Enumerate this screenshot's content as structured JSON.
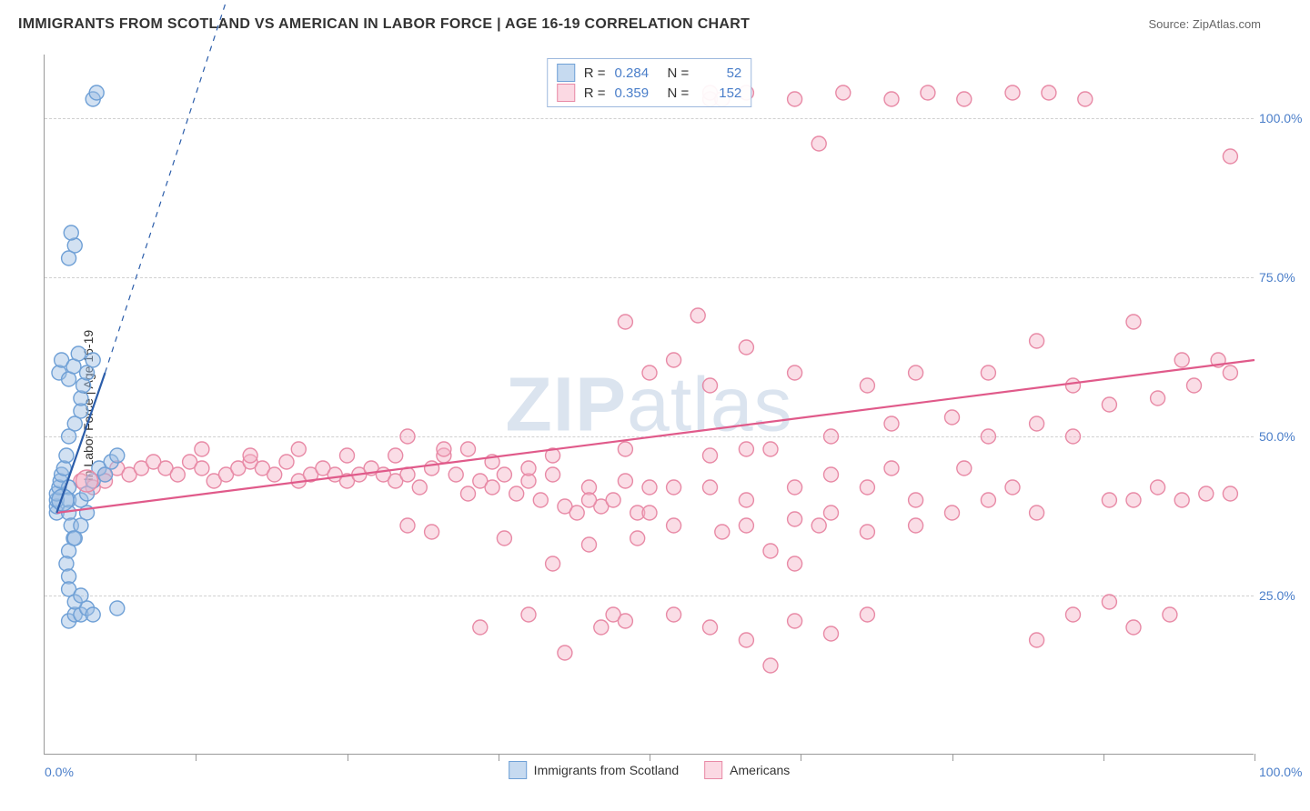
{
  "title": "IMMIGRANTS FROM SCOTLAND VS AMERICAN IN LABOR FORCE | AGE 16-19 CORRELATION CHART",
  "source": "Source: ZipAtlas.com",
  "watermark": "ZIPatlas",
  "y_axis_label": "In Labor Force | Age 16-19",
  "chart": {
    "type": "scatter",
    "xlim": [
      0,
      100
    ],
    "ylim": [
      0,
      110
    ],
    "x_ticks_minor": [
      0,
      12.5,
      25,
      37.5,
      50,
      62.5,
      75,
      87.5,
      100
    ],
    "y_grid": [
      25,
      50,
      75,
      100
    ],
    "y_tick_labels": [
      "25.0%",
      "50.0%",
      "75.0%",
      "100.0%"
    ],
    "x_tick_label_0": "0.0%",
    "x_tick_label_100": "100.0%",
    "background_color": "#ffffff",
    "grid_color": "#d0d0d0",
    "axis_color": "#999999",
    "tick_label_color": "#4a7ec9",
    "marker_radius": 8,
    "marker_radius_large": 12,
    "marker_stroke_width": 1.4,
    "series": [
      {
        "name": "Immigrants from Scotland",
        "color_fill": "rgba(156,189,227,0.45)",
        "color_stroke": "#6fa0d6",
        "swatch_fill": "#c6daf0",
        "swatch_border": "#6fa0d6",
        "R": "0.284",
        "N": "52",
        "trend": {
          "x1": 1,
          "y1": 38,
          "x2": 5,
          "y2": 60,
          "ext_x2": 17,
          "ext_y2": 130,
          "color": "#2b5daa",
          "width": 2.2
        },
        "points": [
          [
            1,
            38
          ],
          [
            1,
            39
          ],
          [
            1,
            40
          ],
          [
            1,
            41
          ],
          [
            1.2,
            42
          ],
          [
            1.3,
            43
          ],
          [
            1.4,
            44
          ],
          [
            1.6,
            45
          ],
          [
            1.8,
            47
          ],
          [
            2,
            42
          ],
          [
            2,
            40
          ],
          [
            2,
            38
          ],
          [
            2.2,
            36
          ],
          [
            2.4,
            34
          ],
          [
            2,
            32
          ],
          [
            1.8,
            30
          ],
          [
            2,
            28
          ],
          [
            2,
            50
          ],
          [
            2.5,
            52
          ],
          [
            3,
            54
          ],
          [
            3,
            56
          ],
          [
            3.2,
            58
          ],
          [
            3.5,
            60
          ],
          [
            4,
            62
          ],
          [
            1.2,
            60
          ],
          [
            1.4,
            62
          ],
          [
            2,
            59
          ],
          [
            2.4,
            61
          ],
          [
            2.8,
            63
          ],
          [
            2,
            78
          ],
          [
            2.5,
            80
          ],
          [
            2.2,
            82
          ],
          [
            4,
            103
          ],
          [
            4.3,
            104
          ],
          [
            2,
            21
          ],
          [
            2.5,
            22
          ],
          [
            3,
            22
          ],
          [
            3.5,
            23
          ],
          [
            2,
            26
          ],
          [
            2.5,
            24
          ],
          [
            3,
            25
          ],
          [
            4,
            22
          ],
          [
            6,
            23
          ],
          [
            2.5,
            34
          ],
          [
            3,
            36
          ],
          [
            3.5,
            38
          ],
          [
            3,
            40
          ],
          [
            3.5,
            41
          ],
          [
            4,
            43
          ],
          [
            4.5,
            45
          ],
          [
            5,
            44
          ],
          [
            5.5,
            46
          ],
          [
            6,
            47
          ]
        ]
      },
      {
        "name": "Americans",
        "color_fill": "rgba(244,180,200,0.45)",
        "color_stroke": "#e88aa6",
        "swatch_fill": "#fbd9e3",
        "swatch_border": "#e88aa6",
        "R": "0.359",
        "N": "152",
        "trend": {
          "x1": 1,
          "y1": 38,
          "x2": 100,
          "y2": 62,
          "color": "#e05a8a",
          "width": 2.2
        },
        "points": [
          [
            3,
            43
          ],
          [
            5,
            44
          ],
          [
            6,
            45
          ],
          [
            7,
            44
          ],
          [
            8,
            45
          ],
          [
            9,
            46
          ],
          [
            10,
            45
          ],
          [
            11,
            44
          ],
          [
            12,
            46
          ],
          [
            13,
            45
          ],
          [
            14,
            43
          ],
          [
            15,
            44
          ],
          [
            16,
            45
          ],
          [
            17,
            46
          ],
          [
            18,
            45
          ],
          [
            19,
            44
          ],
          [
            20,
            46
          ],
          [
            21,
            43
          ],
          [
            22,
            44
          ],
          [
            23,
            45
          ],
          [
            24,
            44
          ],
          [
            25,
            43
          ],
          [
            26,
            44
          ],
          [
            27,
            45
          ],
          [
            28,
            44
          ],
          [
            29,
            43
          ],
          [
            30,
            44
          ],
          [
            31,
            42
          ],
          [
            32,
            45
          ],
          [
            33,
            47
          ],
          [
            34,
            44
          ],
          [
            35,
            41
          ],
          [
            36,
            43
          ],
          [
            37,
            42
          ],
          [
            38,
            44
          ],
          [
            39,
            41
          ],
          [
            40,
            43
          ],
          [
            41,
            40
          ],
          [
            42,
            44
          ],
          [
            43,
            39
          ],
          [
            44,
            38
          ],
          [
            45,
            42
          ],
          [
            46,
            39
          ],
          [
            47,
            40
          ],
          [
            48,
            43
          ],
          [
            49,
            38
          ],
          [
            50,
            42
          ],
          [
            55,
            42
          ],
          [
            58,
            40
          ],
          [
            13,
            48
          ],
          [
            17,
            47
          ],
          [
            21,
            48
          ],
          [
            25,
            47
          ],
          [
            29,
            47
          ],
          [
            33,
            48
          ],
          [
            37,
            46
          ],
          [
            30,
            50
          ],
          [
            35,
            48
          ],
          [
            40,
            45
          ],
          [
            42,
            47
          ],
          [
            45,
            40
          ],
          [
            48,
            48
          ],
          [
            50,
            38
          ],
          [
            52,
            42
          ],
          [
            46,
            20
          ],
          [
            47,
            22
          ],
          [
            48,
            21
          ],
          [
            52,
            22
          ],
          [
            55,
            20
          ],
          [
            58,
            36
          ],
          [
            60,
            32
          ],
          [
            62,
            30
          ],
          [
            55,
            47
          ],
          [
            58,
            48
          ],
          [
            60,
            48
          ],
          [
            62,
            42
          ],
          [
            65,
            44
          ],
          [
            68,
            42
          ],
          [
            70,
            45
          ],
          [
            72,
            40
          ],
          [
            65,
            38
          ],
          [
            68,
            35
          ],
          [
            72,
            36
          ],
          [
            75,
            38
          ],
          [
            78,
            40
          ],
          [
            80,
            42
          ],
          [
            82,
            38
          ],
          [
            65,
            50
          ],
          [
            70,
            52
          ],
          [
            75,
            53
          ],
          [
            78,
            50
          ],
          [
            82,
            52
          ],
          [
            85,
            50
          ],
          [
            50,
            60
          ],
          [
            52,
            62
          ],
          [
            55,
            58
          ],
          [
            58,
            64
          ],
          [
            62,
            60
          ],
          [
            68,
            58
          ],
          [
            72,
            60
          ],
          [
            54,
            69
          ],
          [
            48,
            68
          ],
          [
            82,
            18
          ],
          [
            85,
            22
          ],
          [
            88,
            24
          ],
          [
            90,
            20
          ],
          [
            93,
            22
          ],
          [
            82,
            65
          ],
          [
            78,
            60
          ],
          [
            85,
            58
          ],
          [
            88,
            55
          ],
          [
            92,
            56
          ],
          [
            95,
            58
          ],
          [
            98,
            60
          ],
          [
            96,
            41
          ],
          [
            98,
            41
          ],
          [
            90,
            40
          ],
          [
            92,
            42
          ],
          [
            60,
            14
          ],
          [
            55,
            103
          ],
          [
            58,
            104
          ],
          [
            62,
            103
          ],
          [
            66,
            104
          ],
          [
            70,
            103
          ],
          [
            73,
            104
          ],
          [
            76,
            103
          ],
          [
            80,
            104
          ],
          [
            83,
            104
          ],
          [
            86,
            103
          ],
          [
            64,
            96
          ],
          [
            98,
            94
          ],
          [
            55,
            104
          ],
          [
            56,
            103
          ],
          [
            90,
            68
          ],
          [
            94,
            40
          ],
          [
            45,
            33
          ],
          [
            42,
            30
          ],
          [
            38,
            34
          ],
          [
            30,
            36
          ],
          [
            32,
            35
          ],
          [
            76,
            45
          ],
          [
            64,
            36
          ],
          [
            58,
            18
          ],
          [
            62,
            21
          ],
          [
            65,
            19
          ],
          [
            68,
            22
          ],
          [
            88,
            40
          ],
          [
            43,
            16
          ],
          [
            40,
            22
          ],
          [
            36,
            20
          ],
          [
            62,
            37
          ],
          [
            56,
            35
          ],
          [
            49,
            34
          ],
          [
            52,
            36
          ],
          [
            94,
            62
          ],
          [
            97,
            62
          ],
          [
            5,
            43
          ],
          [
            4,
            42
          ]
        ]
      }
    ],
    "large_points": [
      {
        "series": 0,
        "x": 1.5,
        "y": 40
      },
      {
        "series": 1,
        "x": 3.5,
        "y": 43
      }
    ]
  },
  "bottom_legend": {
    "items": [
      "Immigrants from Scotland",
      "Americans"
    ]
  }
}
